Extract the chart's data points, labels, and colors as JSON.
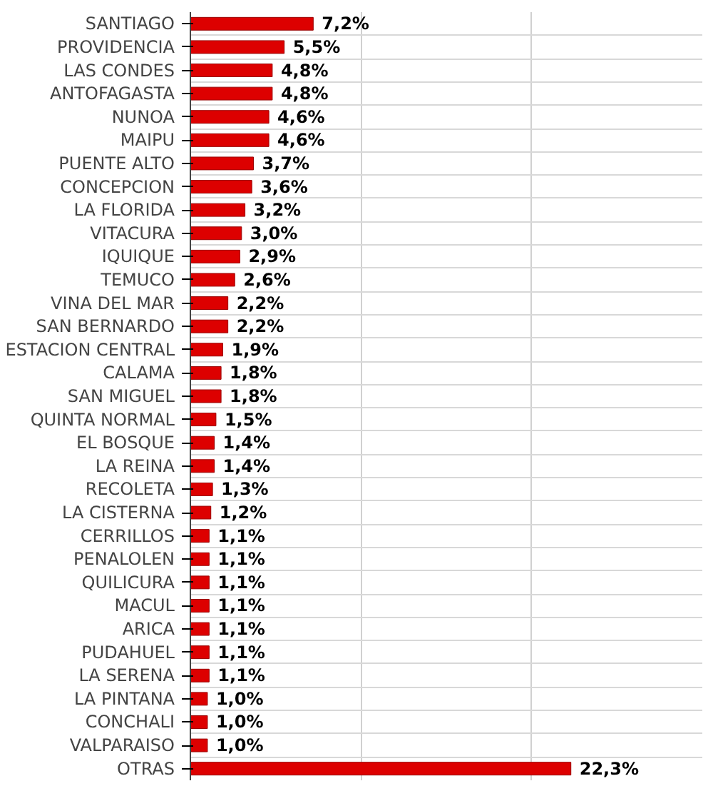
{
  "chart_data": {
    "type": "bar",
    "orientation": "horizontal",
    "categories": [
      "SANTIAGO",
      "PROVIDENCIA",
      "LAS CONDES",
      "ANTOFAGASTA",
      "NUNOA",
      "MAIPU",
      "PUENTE ALTO",
      "CONCEPCION",
      "LA FLORIDA",
      "VITACURA",
      "IQUIQUE",
      "TEMUCO",
      "VINA DEL MAR",
      "SAN BERNARDO",
      "ESTACION CENTRAL",
      "CALAMA",
      "SAN MIGUEL",
      "QUINTA NORMAL",
      "EL BOSQUE",
      "LA REINA",
      "RECOLETA",
      "LA CISTERNA",
      "CERRILLOS",
      "PENALOLEN",
      "QUILICURA",
      "MACUL",
      "ARICA",
      "PUDAHUEL",
      "LA SERENA",
      "LA PINTANA",
      "CONCHALI",
      "VALPARAISO",
      "OTRAS"
    ],
    "values": [
      7.2,
      5.5,
      4.8,
      4.8,
      4.6,
      4.6,
      3.7,
      3.6,
      3.2,
      3.0,
      2.9,
      2.6,
      2.2,
      2.2,
      1.9,
      1.8,
      1.8,
      1.5,
      1.4,
      1.4,
      1.3,
      1.2,
      1.1,
      1.1,
      1.1,
      1.1,
      1.1,
      1.1,
      1.1,
      1.0,
      1.0,
      1.0,
      22.3
    ],
    "value_labels": [
      "7,2%",
      "5,5%",
      "4,8%",
      "4,8%",
      "4,6%",
      "4,6%",
      "3,7%",
      "3,6%",
      "3,2%",
      "3,0%",
      "2,9%",
      "2,6%",
      "2,2%",
      "2,2%",
      "1,9%",
      "1,8%",
      "1,8%",
      "1,5%",
      "1,4%",
      "1,4%",
      "1,3%",
      "1,2%",
      "1,1%",
      "1,1%",
      "1,1%",
      "1,1%",
      "1,1%",
      "1,1%",
      "1,1%",
      "1,0%",
      "1,0%",
      "1,0%",
      "22,3%"
    ],
    "color": "#dd0000",
    "xlim": [
      0,
      30
    ],
    "xticks": [
      {
        "value": 0,
        "label": null
      },
      {
        "value": 10,
        "label": null
      },
      {
        "value": 20,
        "label": null
      }
    ],
    "grid": true,
    "tick_labels": "y"
  }
}
